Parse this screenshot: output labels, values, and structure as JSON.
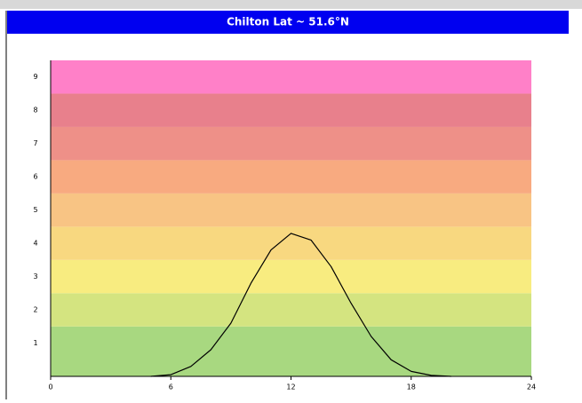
{
  "chart_data": {
    "type": "line",
    "title": "Chilton Lat ~ 51.6°N",
    "x": [
      5,
      6,
      7,
      8,
      9,
      10,
      11,
      12,
      13,
      14,
      15,
      16,
      17,
      18,
      19,
      20
    ],
    "values": [
      0,
      0.05,
      0.3,
      0.8,
      1.6,
      2.8,
      3.8,
      4.3,
      4.1,
      3.3,
      2.2,
      1.2,
      0.5,
      0.15,
      0.03,
      0
    ],
    "color": "#000000",
    "xlim": [
      0,
      24
    ],
    "xticks": [
      0,
      6,
      12,
      18,
      24
    ],
    "ylim": [
      0,
      9.5
    ],
    "yticks": [
      1,
      2,
      3,
      4,
      5,
      6,
      7,
      8,
      9
    ],
    "band_colors": [
      "#a8d880",
      "#d4e480",
      "#f8ec80",
      "#f8d880",
      "#f8c484",
      "#f8aa80",
      "#ee9088",
      "#e8808c",
      "#ff80c8"
    ]
  }
}
